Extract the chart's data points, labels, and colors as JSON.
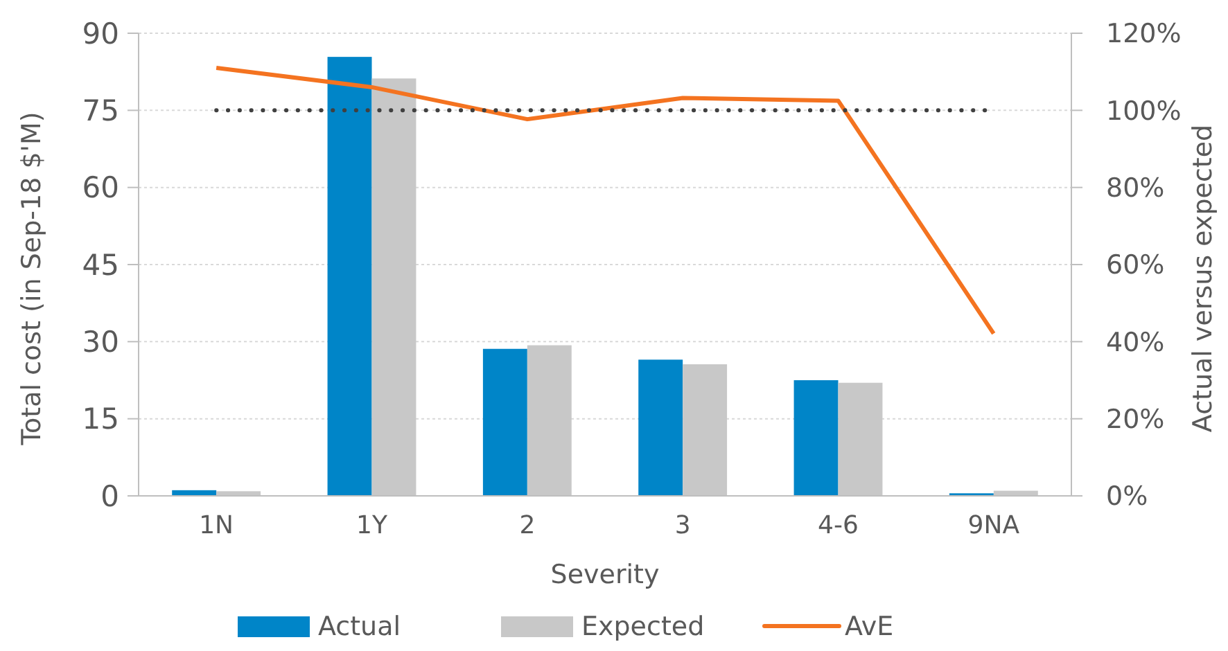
{
  "chart_data": {
    "type": "bar",
    "xlabel": "Severity",
    "ylabel": "Total cost (in Sep-18 $'M)",
    "y2label": "Actual versus expected",
    "categories": [
      "1N",
      "1Y",
      "2",
      "3",
      "4-6",
      "9NA"
    ],
    "series": [
      {
        "name": "Actual",
        "color": "#0085c8",
        "values": [
          1.1,
          85.4,
          28.6,
          26.5,
          22.5,
          0.5
        ]
      },
      {
        "name": "Expected",
        "color": "#c8c8c8",
        "values": [
          0.9,
          81.2,
          29.3,
          25.6,
          22.0,
          1.0
        ]
      },
      {
        "name": "AvE",
        "type": "line",
        "axis": "y2",
        "color": "#f47320",
        "values": [
          111,
          106,
          97.7,
          103.2,
          102.5,
          42.1
        ]
      }
    ],
    "ylim": [
      0,
      90
    ],
    "yticks": [
      0,
      15,
      30,
      45,
      60,
      75,
      90
    ],
    "y2lim": [
      0,
      120
    ],
    "y2ticks": [
      {
        "value": 0,
        "label": "0%"
      },
      {
        "value": 20,
        "label": "20%"
      },
      {
        "value": 40,
        "label": "40%"
      },
      {
        "value": 60,
        "label": "60%"
      },
      {
        "value": 80,
        "label": "80%"
      },
      {
        "value": 100,
        "label": "100%"
      },
      {
        "value": 120,
        "label": "120%"
      }
    ],
    "ref_lines": [
      {
        "axis": "y2",
        "value": 100,
        "color": "#404040",
        "line_style": "dotted"
      }
    ],
    "grid": "y",
    "legend": "bottom",
    "marker": "none",
    "line_style": "solid"
  }
}
